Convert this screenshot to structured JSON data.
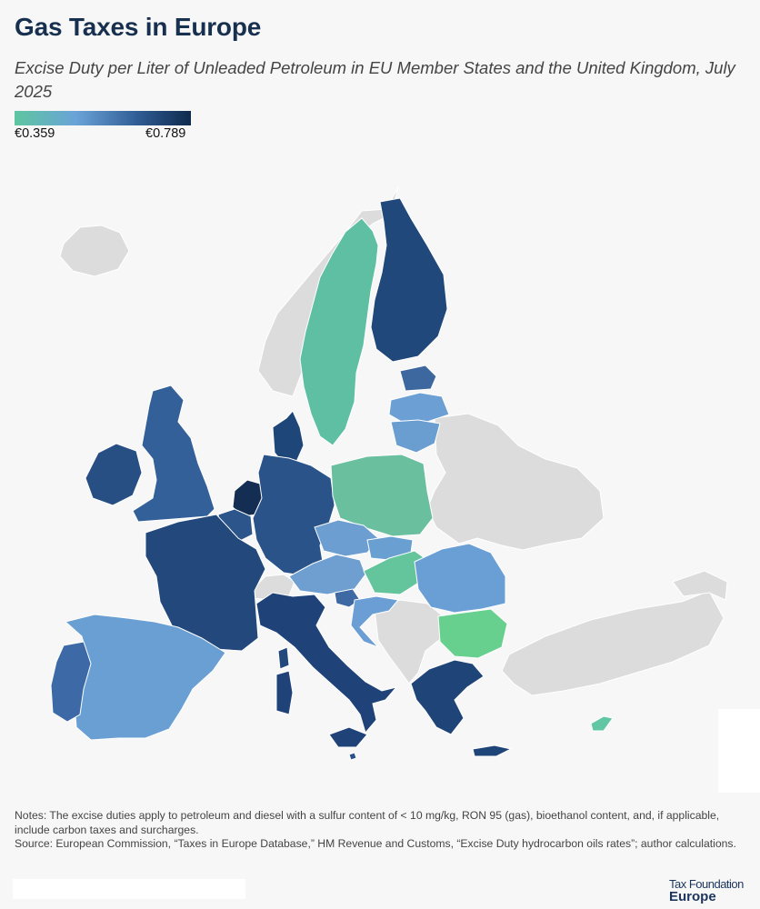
{
  "header": {
    "title": "Gas Taxes in Europe",
    "subtitle": "Excise Duty per Liter of Unleaded Petroleum in EU Member States and the United Kingdom, July 2025"
  },
  "legend": {
    "min_label": "€0.359",
    "max_label": "€0.789",
    "colors": [
      "#5ec6a0",
      "#6aa3d8",
      "#2f5c94",
      "#0f2a4d"
    ]
  },
  "map": {
    "no_data_color": "#dcdcdc",
    "regions": [
      {
        "name": "Sweden",
        "fill": "#5ebfa3"
      },
      {
        "name": "Finland",
        "fill": "#20487a"
      },
      {
        "name": "Norway",
        "fill": "#dcdcdc"
      },
      {
        "name": "Ireland",
        "fill": "#274f84"
      },
      {
        "name": "United Kingdom",
        "fill": "#34609a"
      },
      {
        "name": "Netherlands",
        "fill": "#142d52"
      },
      {
        "name": "Belgium",
        "fill": "#2b558b"
      },
      {
        "name": "France",
        "fill": "#22487c"
      },
      {
        "name": "Germany",
        "fill": "#2a538a"
      },
      {
        "name": "Denmark",
        "fill": "#1f4678"
      },
      {
        "name": "Poland",
        "fill": "#6abf9f"
      },
      {
        "name": "Italy",
        "fill": "#1f4378"
      },
      {
        "name": "Spain",
        "fill": "#6a9fd4"
      },
      {
        "name": "Portugal",
        "fill": "#3d6aa6"
      },
      {
        "name": "Austria",
        "fill": "#6f9fd0"
      },
      {
        "name": "Czechia",
        "fill": "#6c9ed2"
      },
      {
        "name": "Hungary",
        "fill": "#64c49b"
      },
      {
        "name": "Bulgaria",
        "fill": "#68d08f"
      },
      {
        "name": "Greece",
        "fill": "#1f4578"
      },
      {
        "name": "Romania",
        "fill": "#6a9fd6"
      },
      {
        "name": "Estonia",
        "fill": "#3d679f"
      },
      {
        "name": "Latvia",
        "fill": "#6c9fd3"
      },
      {
        "name": "Lithuania",
        "fill": "#6a9dd0"
      },
      {
        "name": "Slovakia",
        "fill": "#6a9fd2"
      },
      {
        "name": "Slovenia",
        "fill": "#3e69a3"
      },
      {
        "name": "Croatia",
        "fill": "#6a9ed4"
      },
      {
        "name": "Cyprus",
        "fill": "#60c6a3"
      },
      {
        "name": "Malta",
        "fill": "#2a5189"
      }
    ]
  },
  "notes": {
    "notes_text": "Notes: The excise duties apply to petroleum and diesel with a sulfur content of < 10 mg/kg, RON 95 (gas), bioethanol content, and, if applicable, include carbon taxes and surcharges.",
    "source_text": "Source: European Commission, “Taxes in Europe Database,” HM Revenue and Customs, “Excise Duty hydrocarbon oils rates”; author calculations."
  },
  "logo": {
    "line1": "Tax Foundation",
    "line2": "Europe"
  }
}
